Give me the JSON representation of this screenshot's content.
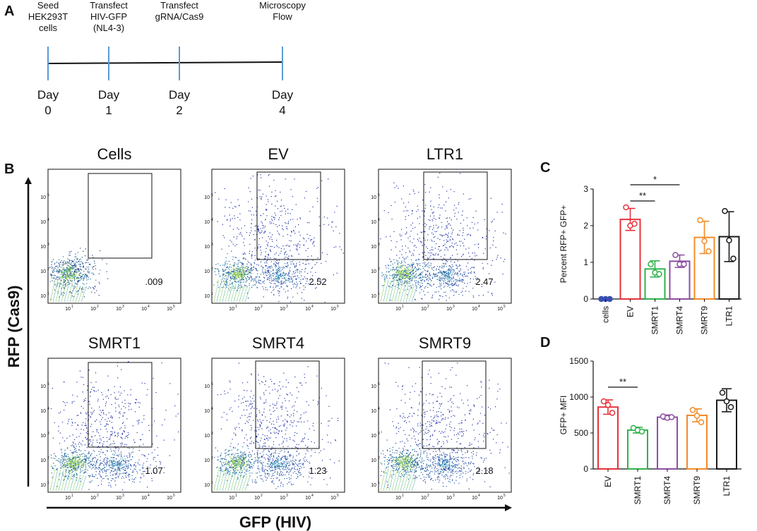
{
  "panelA": {
    "letter": "A",
    "events": [
      {
        "label_lines": [
          "Seed",
          "HEK293T",
          "cells"
        ],
        "day_word": "Day",
        "day_num": "0"
      },
      {
        "label_lines": [
          "Transfect",
          "HIV-GFP",
          "(NL4-3)"
        ],
        "day_word": "Day",
        "day_num": "1"
      },
      {
        "label_lines": [
          "Transfect",
          "gRNA/Cas9"
        ],
        "day_word": "Day",
        "day_num": "2"
      },
      {
        "label_lines": [
          "Microscopy",
          "Flow"
        ],
        "day_word": "Day",
        "day_num": "4"
      }
    ]
  },
  "panelB": {
    "letter": "B",
    "y_axis_label": "RFP (Cas9)",
    "x_axis_label": "GFP (HIV)",
    "tick_labels": [
      "10",
      "10",
      "10",
      "10",
      "10"
    ],
    "tick_exponents": [
      "1",
      "2",
      "3",
      "4",
      "5"
    ],
    "plots": [
      {
        "title": "Cells",
        "gate_value": ".009"
      },
      {
        "title": "EV",
        "gate_value": "2.52"
      },
      {
        "title": "LTR1",
        "gate_value": "2.47"
      },
      {
        "title": "SMRT1",
        "gate_value": "1.07"
      },
      {
        "title": "SMRT4",
        "gate_value": "1.23"
      },
      {
        "title": "SMRT9",
        "gate_value": "2.18"
      }
    ]
  },
  "colors": {
    "label_red": "#e8323b",
    "label_green": "#8cc63f",
    "timeline_tick": "#5b9bd5",
    "dot_blue": "#2233aa",
    "EV": "#e8323b",
    "SMRT1": "#2fb34a",
    "SMRT4": "#8c4fa3",
    "SMRT9": "#f28c28",
    "LTR1": "#1a1a1a",
    "cells": "#3a4fb0"
  },
  "chart_data": [
    {
      "panel": "C",
      "type": "bar",
      "ylabel": "Percent RFP+ GFP+",
      "ylim": [
        0,
        3
      ],
      "yticks": [
        "0",
        "1",
        "2",
        "3"
      ],
      "categories": [
        "cells",
        "EV",
        "SMRT1",
        "SMRT4",
        "SMRT9",
        "LTR1"
      ],
      "values": [
        0.0,
        2.17,
        0.82,
        1.03,
        1.68,
        1.7
      ],
      "errors": [
        0.0,
        0.3,
        0.22,
        0.17,
        0.44,
        0.68
      ],
      "points": [
        [
          0.0,
          0.0,
          0.0
        ],
        [
          2.5,
          2.0,
          2.05
        ],
        [
          0.95,
          0.72,
          0.68
        ],
        [
          1.2,
          0.95,
          0.95
        ],
        [
          2.15,
          1.58,
          1.3
        ],
        [
          2.4,
          1.6,
          1.1
        ]
      ],
      "significance": [
        {
          "from": "EV",
          "to": "SMRT1",
          "label": "**"
        },
        {
          "from": "EV",
          "to": "SMRT4",
          "label": "*"
        }
      ]
    },
    {
      "panel": "D",
      "type": "bar",
      "ylabel": "GFP+ MFI",
      "ylim": [
        0,
        1500
      ],
      "yticks": [
        "0",
        "500",
        "1000",
        "1500"
      ],
      "categories": [
        "EV",
        "SMRT1",
        "SMRT4",
        "SMRT9",
        "LTR1"
      ],
      "values": [
        860,
        540,
        720,
        745,
        955
      ],
      "errors": [
        100,
        40,
        30,
        90,
        160
      ],
      "points": [
        [
          940,
          890,
          780
        ],
        [
          570,
          540,
          520
        ],
        [
          730,
          710,
          720
        ],
        [
          820,
          740,
          650
        ],
        [
          1060,
          940,
          860
        ]
      ],
      "significance": [
        {
          "from": "EV",
          "to": "SMRT1",
          "label": "**"
        }
      ]
    }
  ]
}
